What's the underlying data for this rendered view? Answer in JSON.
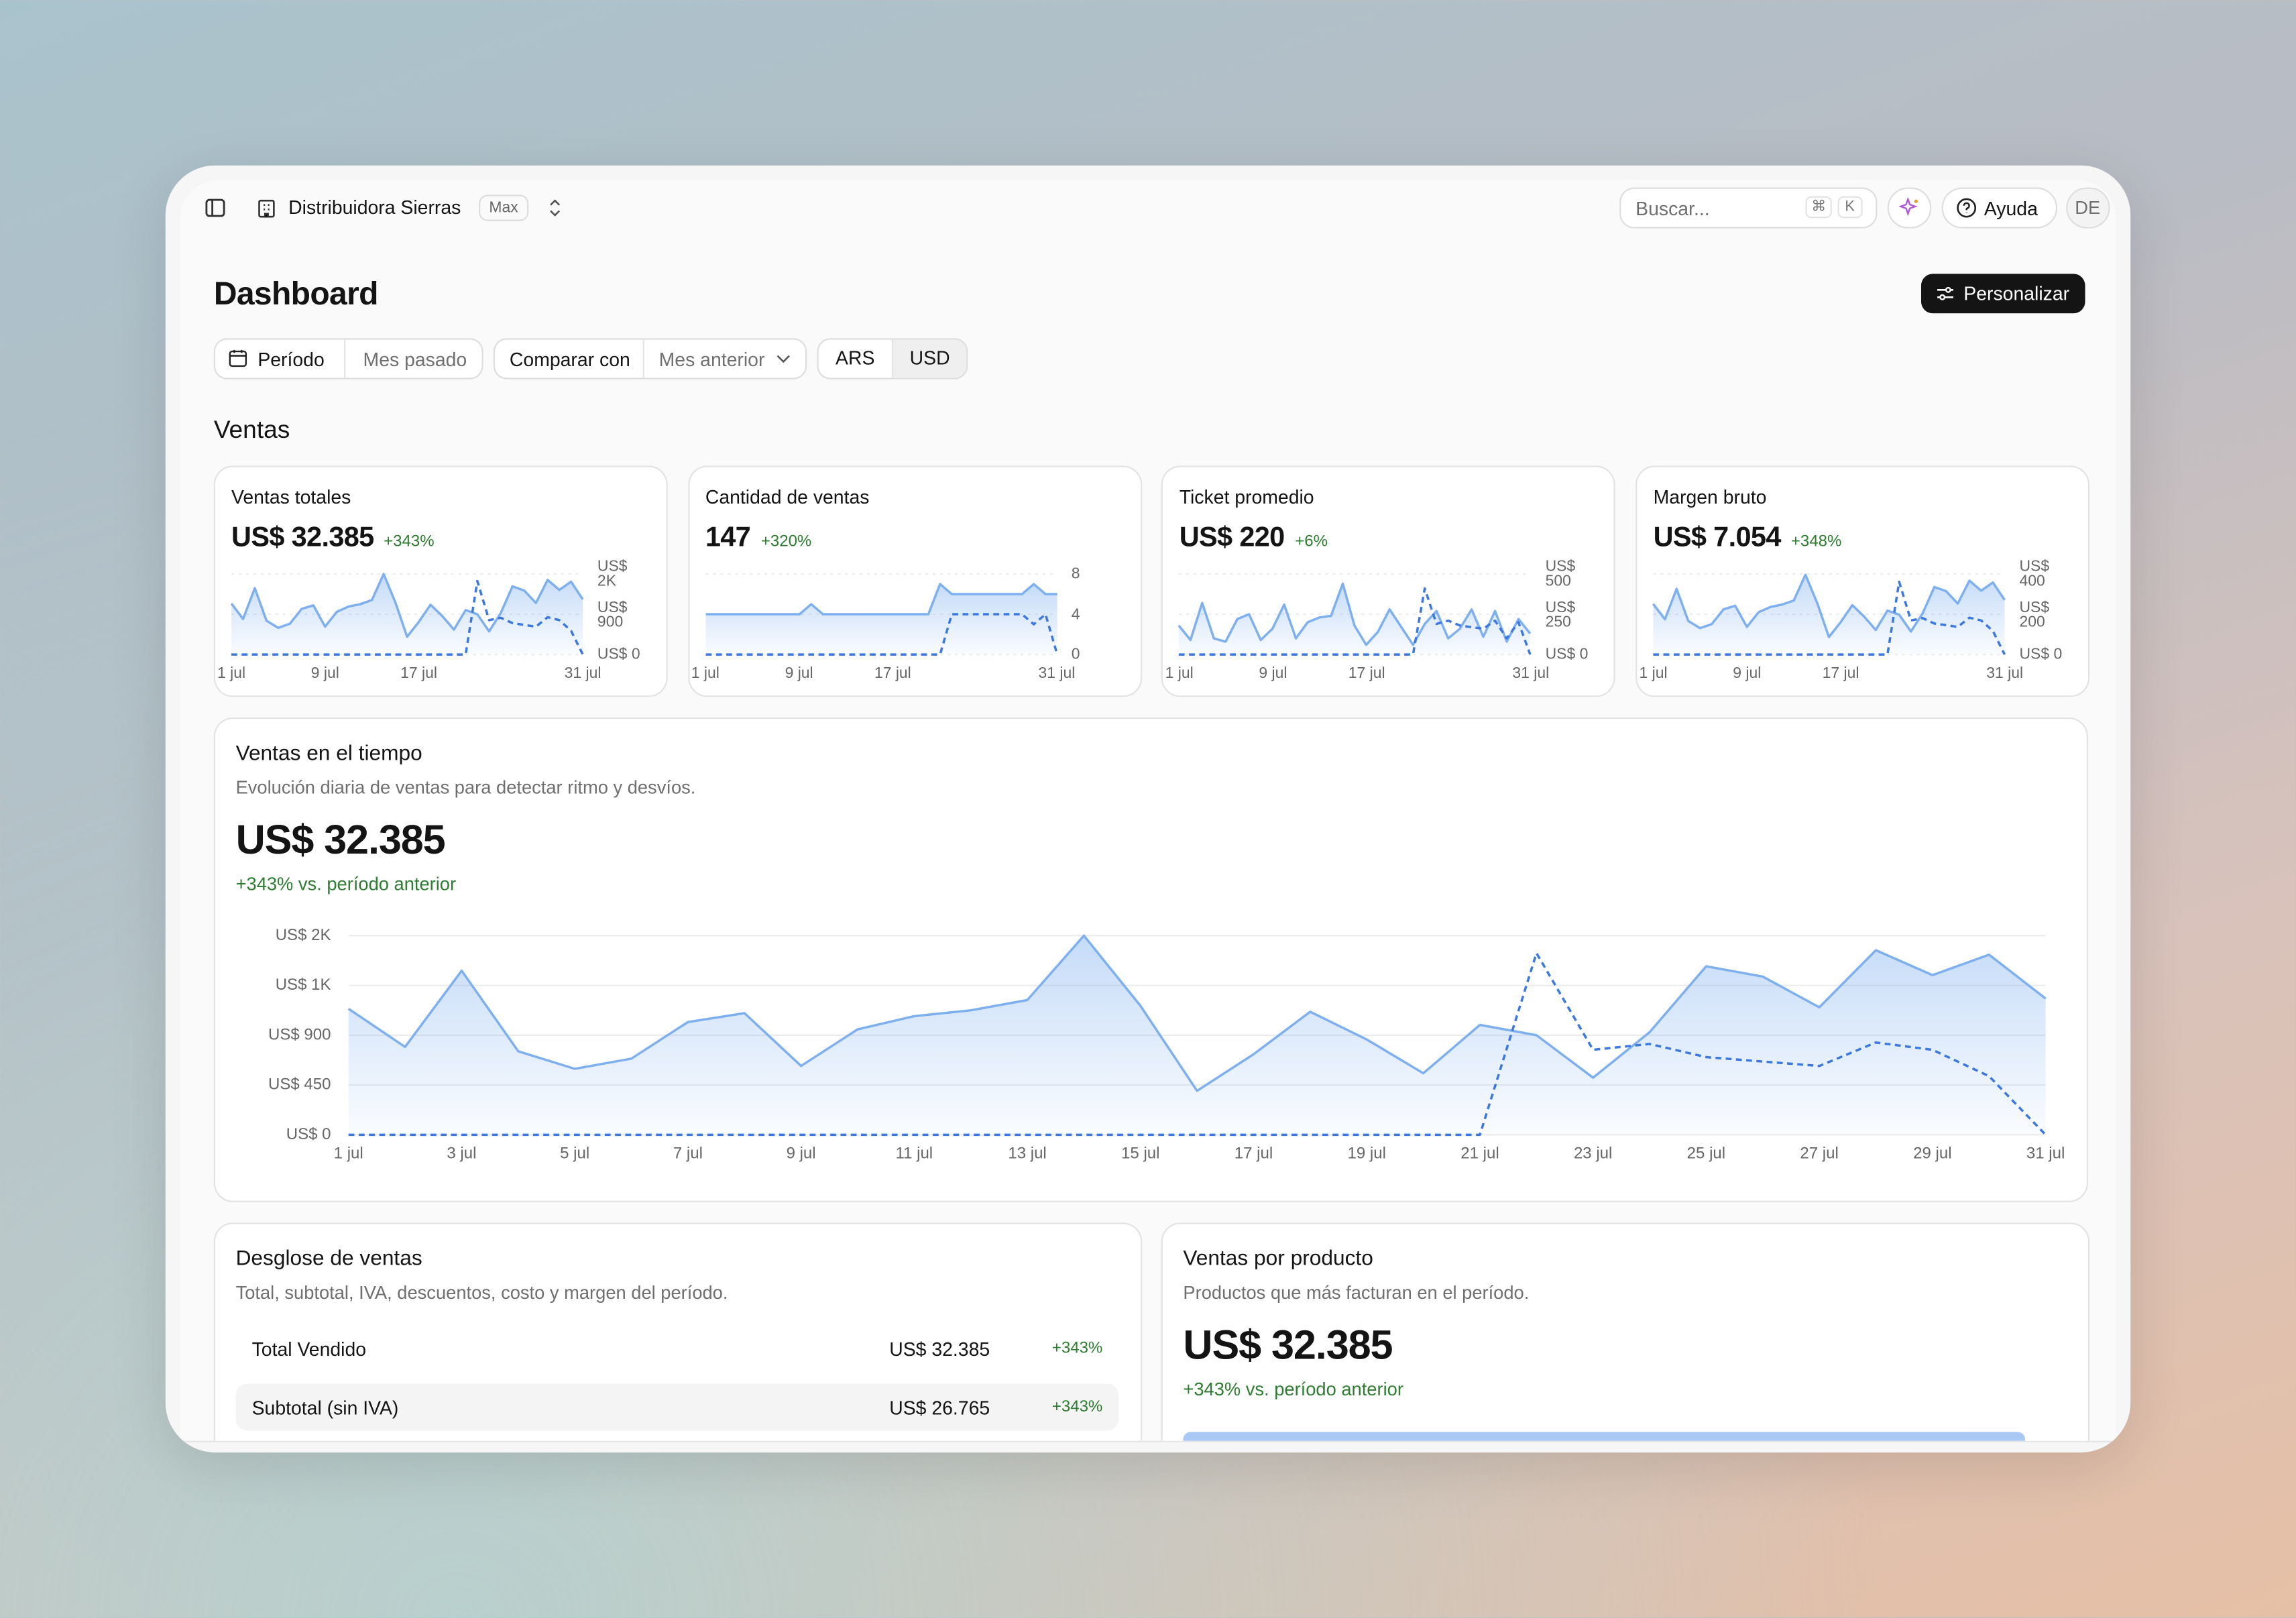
{
  "header": {
    "workspace": "Distribuidora Sierras",
    "plan": "Max",
    "search": "Buscar...",
    "shortcut": [
      "⌘",
      "K"
    ],
    "help": "Ayuda",
    "avatar": "DE"
  },
  "page": {
    "title": "Dashboard",
    "customize": "Personalizar"
  },
  "filters": {
    "period_label": "Período",
    "period_value": "Mes pasado",
    "compare_label": "Comparar con",
    "compare_value": "Mes anterior",
    "currencies": [
      "ARS",
      "USD"
    ],
    "active_currency": 1
  },
  "section": "Ventas",
  "kpi_cards": [
    {
      "title": "Ventas totales",
      "value": "US$ 32.385",
      "change": "+343%",
      "chart": {
        "type": "area",
        "grid": true,
        "categories": [
          "1 jul",
          null,
          null,
          null,
          null,
          null,
          null,
          null,
          "9 jul",
          null,
          null,
          null,
          null,
          null,
          null,
          null,
          "17 jul",
          null,
          null,
          null,
          null,
          null,
          null,
          null,
          null,
          null,
          null,
          null,
          null,
          null,
          "31 jul"
        ],
        "ylim": [
          0,
          1800
        ],
        "yticks": [
          {
            "value": 0,
            "label": "US$ 0"
          },
          {
            "value": 900,
            "label": "US$ 900"
          },
          {
            "value": 1800,
            "label": "US$ 2K"
          }
        ],
        "series": [
          {
            "color": "#7eb0f0",
            "style": "solid",
            "fill": true,
            "values": [
              1139,
              794,
              1483,
              755,
              596,
              688,
              1019,
              1099,
              622,
              953,
              1072,
              1125,
              1218,
              1800,
              1165,
              397,
              728,
              1112,
              861,
              556,
              993,
              900,
              516,
              927,
              1523,
              1430,
              1152,
              1668,
              1443,
              1628,
              1231
            ]
          },
          {
            "color": "#3b78e0",
            "style": "dashed",
            "fill": false,
            "values": [
              0,
              0,
              0,
              0,
              0,
              0,
              0,
              0,
              0,
              0,
              0,
              0,
              0,
              0,
              0,
              0,
              0,
              0,
              0,
              0,
              0,
              1642,
              768,
              821,
              702,
              662,
              622,
              834,
              768,
              530,
              0
            ]
          }
        ]
      }
    },
    {
      "title": "Cantidad de ventas",
      "value": "147",
      "change": "+320%",
      "chart": {
        "type": "area",
        "grid": true,
        "categories": [
          "1 jul",
          null,
          null,
          null,
          null,
          null,
          null,
          null,
          "9 jul",
          null,
          null,
          null,
          null,
          null,
          null,
          null,
          "17 jul",
          null,
          null,
          null,
          null,
          null,
          null,
          null,
          null,
          null,
          null,
          null,
          null,
          null,
          "31 jul"
        ],
        "ylim": [
          0,
          8
        ],
        "yticks": [
          0,
          4,
          8
        ],
        "series": [
          {
            "color": "#7eb0f0",
            "style": "solid",
            "fill": true,
            "values": [
              4,
              4,
              4,
              4,
              4,
              4,
              4,
              4,
              4,
              5,
              4,
              4,
              4,
              4,
              4,
              4,
              4,
              4,
              4,
              4,
              7,
              6,
              6,
              6,
              6,
              6,
              6,
              6,
              7,
              6,
              6
            ]
          },
          {
            "color": "#3b78e0",
            "style": "dashed",
            "fill": false,
            "values": [
              0,
              0,
              0,
              0,
              0,
              0,
              0,
              0,
              0,
              0,
              0,
              0,
              0,
              0,
              0,
              0,
              0,
              0,
              0,
              0,
              0,
              4,
              4,
              4,
              4,
              4,
              4,
              4,
              3,
              4,
              0
            ]
          }
        ]
      }
    },
    {
      "title": "Ticket promedio",
      "value": "US$ 220",
      "change": "+6%",
      "chart": {
        "type": "area",
        "grid": true,
        "categories": [
          "1 jul",
          null,
          null,
          null,
          null,
          null,
          null,
          null,
          "9 jul",
          null,
          null,
          null,
          null,
          null,
          null,
          null,
          "17 jul",
          null,
          null,
          null,
          null,
          null,
          null,
          null,
          null,
          null,
          null,
          null,
          null,
          null,
          "31 jul"
        ],
        "ylim": [
          0,
          500
        ],
        "yticks": [
          {
            "value": 0,
            "label": "US$ 0"
          },
          {
            "value": 250,
            "label": "US$ 250"
          },
          {
            "value": 500,
            "label": "US$ 500"
          }
        ],
        "series": [
          {
            "color": "#7eb0f0",
            "style": "solid",
            "fill": true,
            "values": [
              180,
              90,
              320,
              100,
              80,
              220,
              250,
              90,
              160,
              310,
              100,
              200,
              230,
              240,
              440,
              180,
              60,
              140,
              280,
              170,
              60,
              190,
              270,
              100,
              160,
              280,
              110,
              270,
              80,
              220,
              130
            ]
          },
          {
            "color": "#3b78e0",
            "style": "dashed",
            "fill": false,
            "values": [
              0,
              0,
              0,
              0,
              0,
              0,
              0,
              0,
              0,
              0,
              0,
              0,
              0,
              0,
              0,
              0,
              0,
              0,
              0,
              0,
              0,
              410,
              190,
              210,
              180,
              170,
              160,
              210,
              100,
              200,
              0
            ]
          }
        ]
      }
    },
    {
      "title": "Margen bruto",
      "value": "US$ 7.054",
      "change": "+348%",
      "chart": {
        "type": "area",
        "grid": true,
        "categories": [
          "1 jul",
          null,
          null,
          null,
          null,
          null,
          null,
          null,
          "9 jul",
          null,
          null,
          null,
          null,
          null,
          null,
          null,
          "17 jul",
          null,
          null,
          null,
          null,
          null,
          null,
          null,
          null,
          null,
          null,
          null,
          null,
          null,
          "31 jul"
        ],
        "ylim": [
          0,
          400
        ],
        "yticks": [
          {
            "value": 0,
            "label": "US$ 0"
          },
          {
            "value": 200,
            "label": "US$ 200"
          },
          {
            "value": 400,
            "label": "US$ 400"
          }
        ],
        "series": [
          {
            "color": "#7eb0f0",
            "style": "solid",
            "fill": true,
            "values": [
              251,
              175,
              326,
              166,
              131,
              151,
              224,
              242,
              137,
              210,
              236,
              248,
              268,
              396,
              256,
              87,
              160,
              245,
              189,
              122,
              218,
              198,
              114,
              204,
              335,
              315,
              253,
              367,
              317,
              358,
              271
            ]
          },
          {
            "color": "#3b78e0",
            "style": "dashed",
            "fill": false,
            "values": [
              0,
              0,
              0,
              0,
              0,
              0,
              0,
              0,
              0,
              0,
              0,
              0,
              0,
              0,
              0,
              0,
              0,
              0,
              0,
              0,
              0,
              361,
              169,
              181,
              154,
              146,
              137,
              183,
              169,
              117,
              0
            ]
          }
        ]
      }
    }
  ],
  "sales_over_time": {
    "title": "Ventas en el tiempo",
    "subtitle": "Evolución diaria de ventas para detectar ritmo y desvíos.",
    "value": "US$ 32.385",
    "change": "+343% vs. período anterior",
    "chart": {
      "type": "area",
      "grid": true,
      "categories": [
        "1 jul",
        null,
        "3 jul",
        null,
        "5 jul",
        null,
        "7 jul",
        null,
        "9 jul",
        null,
        "11 jul",
        null,
        "13 jul",
        null,
        "15 jul",
        null,
        "17 jul",
        null,
        "19 jul",
        null,
        "21 jul",
        null,
        "23 jul",
        null,
        "25 jul",
        null,
        "27 jul",
        null,
        "29 jul",
        null,
        "31 jul"
      ],
      "ylim": [
        0,
        1800
      ],
      "yticks": [
        {
          "value": 0,
          "label": "US$ 0"
        },
        {
          "value": 450,
          "label": "US$ 450"
        },
        {
          "value": 900,
          "label": "US$ 900"
        },
        {
          "value": 1350,
          "label": "US$ 1K"
        },
        {
          "value": 1800,
          "label": "US$ 2K"
        }
      ],
      "series": [
        {
          "color": "#7eb0f0",
          "style": "solid",
          "fill": true,
          "values": [
            1139,
            794,
            1483,
            755,
            596,
            688,
            1019,
            1099,
            622,
            953,
            1072,
            1125,
            1218,
            1800,
            1165,
            397,
            728,
            1112,
            861,
            556,
            993,
            900,
            516,
            927,
            1523,
            1430,
            1152,
            1668,
            1443,
            1628,
            1231
          ]
        },
        {
          "color": "#3b78e0",
          "style": "dashed",
          "fill": false,
          "values": [
            0,
            0,
            0,
            0,
            0,
            0,
            0,
            0,
            0,
            0,
            0,
            0,
            0,
            0,
            0,
            0,
            0,
            0,
            0,
            0,
            0,
            1642,
            768,
            821,
            702,
            662,
            622,
            834,
            768,
            530,
            0
          ]
        }
      ]
    }
  },
  "breakdown": {
    "title": "Desglose de ventas",
    "subtitle": "Total, subtotal, IVA, descuentos, costo y margen del período.",
    "rows": [
      [
        "Total Vendido",
        "US$ 32.385",
        "+343%"
      ],
      [
        "Subtotal (sin IVA)",
        "US$ 26.765",
        "+343%"
      ]
    ]
  },
  "by_product": {
    "title": "Ventas por producto",
    "subtitle": "Productos que más facturan en el período.",
    "value": "US$ 32.385",
    "change": "+343% vs. período anterior"
  }
}
